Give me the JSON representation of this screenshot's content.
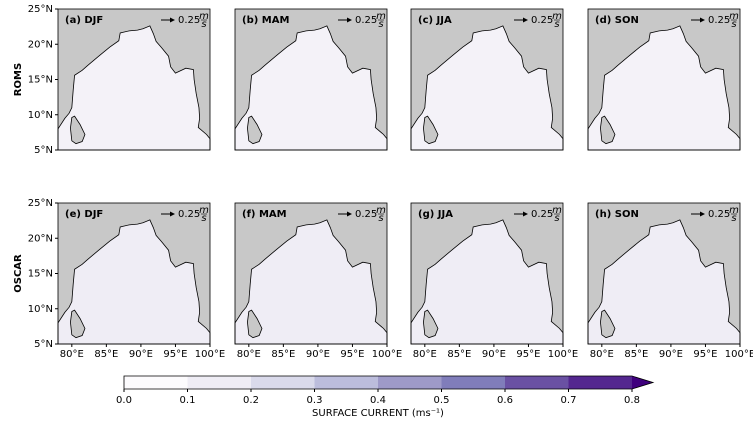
{
  "rows": [
    "ROMS",
    "OSCAR"
  ],
  "panels": [
    {
      "label": "(a) DJF"
    },
    {
      "label": "(b) MAM"
    },
    {
      "label": "(c) JJA"
    },
    {
      "label": "(d) SON"
    },
    {
      "label": "(e) DJF"
    },
    {
      "label": "(f) MAM"
    },
    {
      "label": "(g) JJA"
    },
    {
      "label": "(h) SON"
    }
  ],
  "reference_arrow": {
    "value": "0.25",
    "unit_top": "m",
    "unit_bottom": "s"
  },
  "map": {
    "lon_extent": [
      78,
      100
    ],
    "lat_extent": [
      5,
      25
    ],
    "lat_ticks": [
      {
        "value": 5,
        "label": "5°N"
      },
      {
        "value": 10,
        "label": "10°N"
      },
      {
        "value": 15,
        "label": "15°N"
      },
      {
        "value": 20,
        "label": "20°N"
      },
      {
        "value": 25,
        "label": "25°N"
      }
    ],
    "lon_ticks": [
      {
        "value": 80,
        "label": "80°E"
      },
      {
        "value": 85,
        "label": "85°E"
      },
      {
        "value": 90,
        "label": "90°E"
      },
      {
        "value": 95,
        "label": "95°E"
      },
      {
        "value": 100,
        "label": "100°E"
      }
    ]
  },
  "colorbar": {
    "label": "SURFACE CURRENT (ms⁻¹)",
    "range": [
      0,
      0.8
    ],
    "ticks": [
      {
        "value": 0,
        "label": "0.0"
      },
      {
        "value": 0.1,
        "label": "0.1"
      },
      {
        "value": 0.2,
        "label": "0.2"
      },
      {
        "value": 0.3,
        "label": "0.3"
      },
      {
        "value": 0.4,
        "label": "0.4"
      },
      {
        "value": 0.5,
        "label": "0.5"
      },
      {
        "value": 0.6,
        "label": "0.6"
      },
      {
        "value": 0.7,
        "label": "0.7"
      },
      {
        "value": 0.8,
        "label": "0.8"
      }
    ],
    "colors": [
      "#fcfbfd",
      "#efedf5",
      "#dadaeb",
      "#bcbddc",
      "#9e9ac8",
      "#807dba",
      "#6a51a3",
      "#54278f"
    ],
    "extend_color": "#3f007d"
  }
}
